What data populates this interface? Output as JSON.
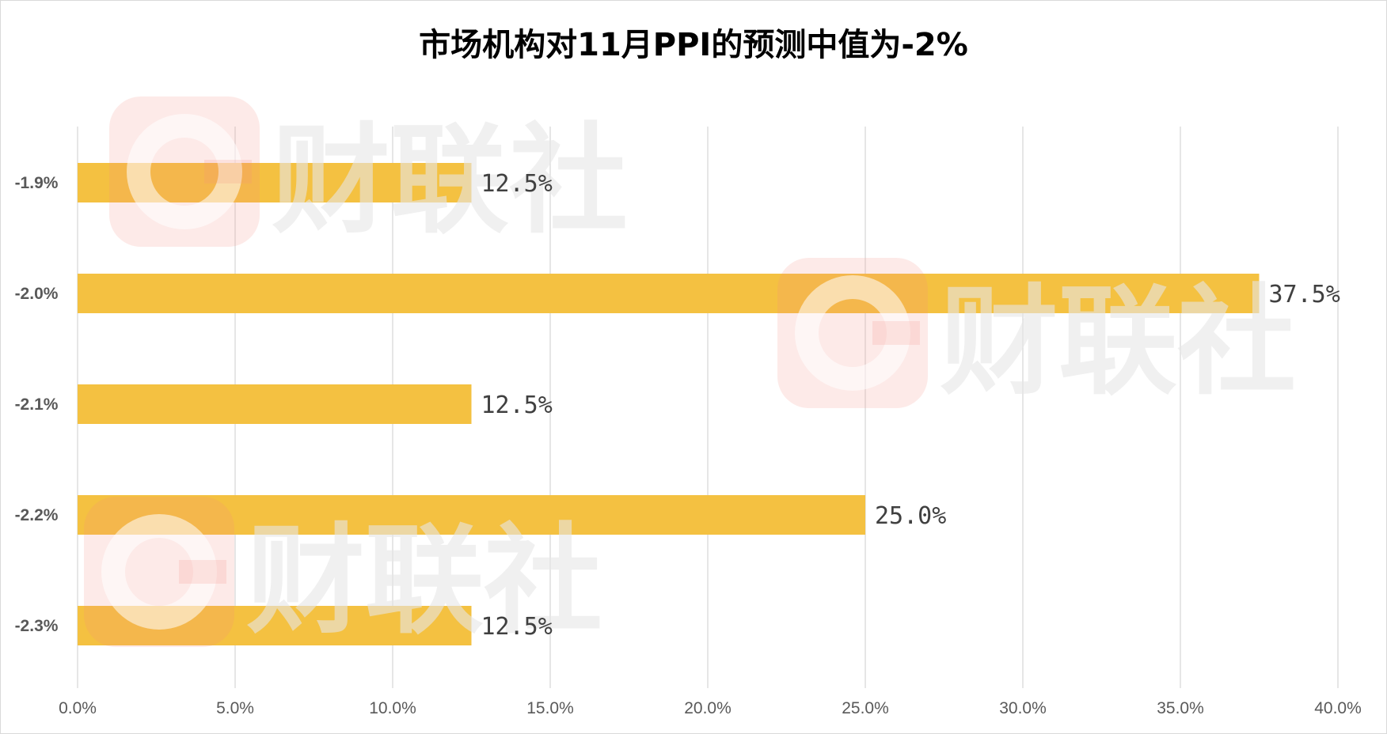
{
  "chart_data": {
    "type": "bar",
    "orientation": "horizontal",
    "title": "市场机构对11月PPI的预测中值为-2%",
    "categories": [
      "-1.9%",
      "-2.0%",
      "-2.1%",
      "-2.2%",
      "-2.3%"
    ],
    "values": [
      12.5,
      37.5,
      12.5,
      25.0,
      12.5
    ],
    "value_labels": [
      "12.5%",
      "37.5%",
      "12.5%",
      "25.0%",
      "12.5%"
    ],
    "xlim": [
      0,
      40
    ],
    "x_ticks": [
      "0.0%",
      "5.0%",
      "10.0%",
      "15.0%",
      "20.0%",
      "25.0%",
      "30.0%",
      "35.0%",
      "40.0%"
    ],
    "xlabel": "",
    "ylabel": "",
    "grid": "vertical",
    "legend": "none",
    "bar_color": "#F4C141"
  },
  "watermark": {
    "text": "财联社",
    "logo_letter": "C",
    "logo_color": "#F28B82"
  }
}
